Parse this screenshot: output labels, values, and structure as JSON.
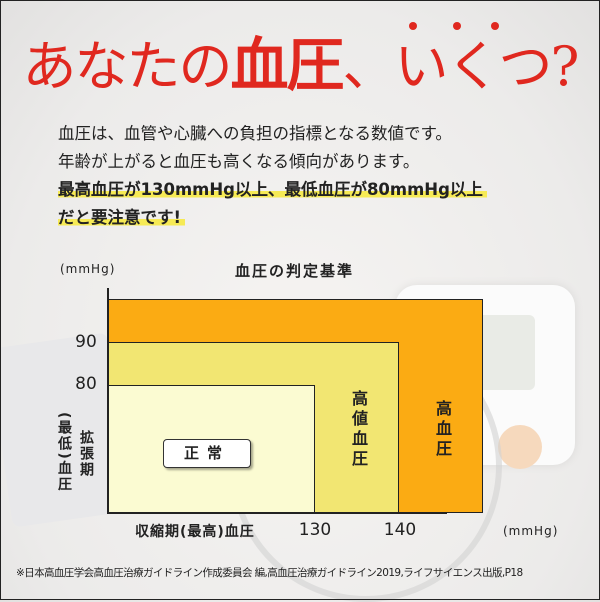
{
  "headline": {
    "pre": "あなたの",
    "emph": "血圧",
    "post": "、いくつ?"
  },
  "intro": {
    "line1": "血圧は、血管や心臓への負担の指標となる数値です。",
    "line2": "年齢が上がると血圧も高くなる傾向があります。",
    "highlight1": "最高血圧が130mmHg以上、最低血圧が80mmHg以上",
    "highlight2": "だと要注意です!"
  },
  "colors": {
    "headline": "#e0281f",
    "normal": "#fbfbd2",
    "high_normal": "#f2e672",
    "hypertension": "#fbab13",
    "highlight": "#f6ea55"
  },
  "chart_data": {
    "type": "area",
    "title": "血圧の判定基準",
    "xlabel": "収縮期(最高)血圧",
    "ylabel_col1": "(最低)血圧",
    "ylabel_col2": "拡張期",
    "x_unit": "(mmHg)",
    "y_unit": "(mmHg)",
    "x_ticks": [
      "130",
      "140"
    ],
    "y_ticks": [
      "90",
      "80"
    ],
    "regions": [
      {
        "label": "高血圧",
        "x_max": 150,
        "y_max": 100,
        "color": "#fbab13"
      },
      {
        "label": "高値血圧",
        "x_max": 140,
        "y_max": 90,
        "color": "#f2e672"
      },
      {
        "label": "正常",
        "x_max": 130,
        "y_max": 80,
        "color": "#fbfbd2"
      }
    ]
  },
  "footnote": "※日本高血圧学会高血圧治療ガイドライン作成委員会 編,高血圧治療ガイドライン2019,ライフサイエンス出版,P18"
}
